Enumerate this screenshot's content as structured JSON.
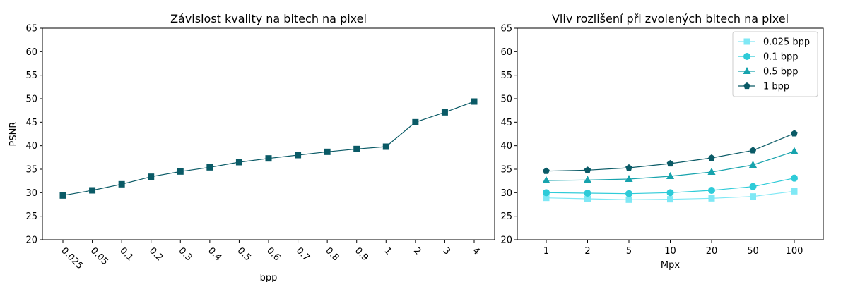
{
  "chart_data": [
    {
      "type": "line",
      "title": "Závislost kvality na bitech na pixel",
      "xlabel": "bpp",
      "ylabel": "PSNR",
      "categories": [
        "0.025",
        "0.05",
        "0.1",
        "0.2",
        "0.3",
        "0.4",
        "0.5",
        "0.6",
        "0.7",
        "0.8",
        "0.9",
        "1",
        "2",
        "3",
        "4"
      ],
      "ylim": [
        20,
        65
      ],
      "yticks": [
        "20",
        "25",
        "30",
        "35",
        "40",
        "45",
        "50",
        "55",
        "60",
        "65"
      ],
      "grid": false,
      "series": [
        {
          "values": [
            29.4,
            30.5,
            31.8,
            33.4,
            34.5,
            35.4,
            36.5,
            37.3,
            38.0,
            38.7,
            39.3,
            39.8,
            45.0,
            47.1,
            49.4
          ],
          "color": "#0a5a66",
          "marker": "square"
        }
      ]
    },
    {
      "type": "line",
      "title": "Vliv rozlišení při zvolených bitech na pixel",
      "xlabel": "Mpx",
      "ylabel": "",
      "categories": [
        "1",
        "2",
        "5",
        "10",
        "20",
        "50",
        "100"
      ],
      "ylim": [
        20,
        65
      ],
      "yticks": [
        "20",
        "25",
        "30",
        "35",
        "40",
        "45",
        "50",
        "55",
        "60",
        "65"
      ],
      "grid": false,
      "legend_position": "top-right",
      "series": [
        {
          "name": "0.025 bpp",
          "values": [
            28.9,
            28.7,
            28.5,
            28.6,
            28.8,
            29.2,
            30.3
          ],
          "color": "#7fe8f5",
          "marker": "square"
        },
        {
          "name": "0.1 bpp",
          "values": [
            30.0,
            29.9,
            29.8,
            30.0,
            30.5,
            31.3,
            33.1
          ],
          "color": "#2ecbd8",
          "marker": "circle"
        },
        {
          "name": "0.5 bpp",
          "values": [
            32.6,
            32.7,
            32.9,
            33.5,
            34.4,
            35.9,
            38.8
          ],
          "color": "#17a3ad",
          "marker": "triangle"
        },
        {
          "name": "1 bpp",
          "values": [
            34.6,
            34.8,
            35.3,
            36.2,
            37.4,
            39.0,
            42.6
          ],
          "color": "#0a5a66",
          "marker": "pentagon"
        }
      ]
    }
  ]
}
